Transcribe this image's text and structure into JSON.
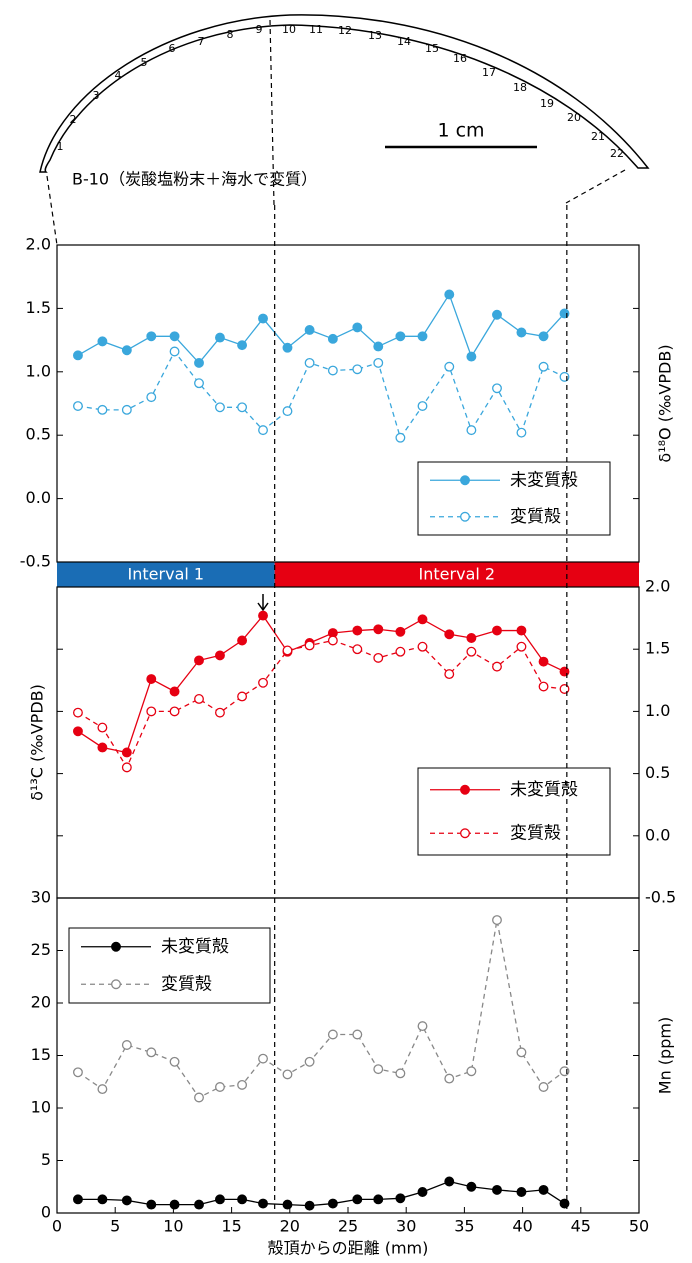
{
  "header": {
    "specimen": "B-10（炭酸塩粉末＋海水で変質）",
    "scale_bar": "1 cm",
    "shell_labels": [
      1,
      2,
      3,
      4,
      5,
      6,
      7,
      8,
      9,
      10,
      11,
      12,
      13,
      14,
      15,
      16,
      17,
      18,
      19,
      20,
      21,
      22
    ]
  },
  "intervals": [
    {
      "label": "Interval 1",
      "start": 0,
      "end": 18.7,
      "color": "#1a6db5"
    },
    {
      "label": "Interval 2",
      "start": 18.7,
      "end": 50,
      "color": "#e60012"
    }
  ],
  "vlines": [
    18.7,
    43.8
  ],
  "chart_data": [
    {
      "type": "line",
      "ylabel": "δ¹⁸O (‰VPDB)",
      "xlim": [
        0,
        50
      ],
      "ylim": [
        -0.5,
        2.0
      ],
      "yticks": [
        {
          "value": -0.5,
          "label": "-0.5"
        },
        {
          "value": 0,
          "label": "0.0"
        },
        {
          "value": 0.5,
          "label": "0.5"
        },
        {
          "value": 1,
          "label": "1.0"
        },
        {
          "value": 1.5,
          "label": "1.5"
        },
        {
          "value": 2,
          "label": "2.0"
        }
      ],
      "legend": "lower right",
      "x": [
        1.8,
        3.9,
        6.0,
        8.1,
        10.1,
        12.2,
        14.0,
        15.9,
        17.7,
        19.8,
        21.7,
        23.7,
        25.8,
        27.6,
        29.5,
        31.4,
        33.7,
        35.6,
        37.8,
        39.9,
        41.8,
        43.6
      ],
      "series": [
        {
          "name": "未変質殻",
          "color": "#3aa7dc",
          "linestyle": "solid",
          "marker": "filled",
          "values": [
            1.13,
            1.24,
            1.17,
            1.28,
            1.28,
            1.07,
            1.27,
            1.21,
            1.42,
            1.19,
            1.33,
            1.26,
            1.35,
            1.2,
            1.28,
            1.28,
            1.61,
            1.12,
            1.45,
            1.31,
            1.28,
            1.46
          ]
        },
        {
          "name": "変質殻",
          "color": "#3aa7dc",
          "linestyle": "dashed",
          "marker": "open",
          "values": [
            0.73,
            0.7,
            0.7,
            0.8,
            1.16,
            0.91,
            0.72,
            0.72,
            0.54,
            0.69,
            1.07,
            1.01,
            1.02,
            1.07,
            0.48,
            0.73,
            1.04,
            0.54,
            0.87,
            0.52,
            1.04,
            0.96
          ]
        }
      ]
    },
    {
      "type": "line",
      "ylabel": "δ¹³C (‰VPDB)",
      "xlim": [
        0,
        50
      ],
      "ylim": [
        -0.5,
        2.0
      ],
      "yticks": [
        {
          "value": -0.5,
          "label": "-0.5"
        },
        {
          "value": 0,
          "label": "0.0"
        },
        {
          "value": 0.5,
          "label": "0.5"
        },
        {
          "value": 1,
          "label": "1.0"
        },
        {
          "value": 1.5,
          "label": "1.5"
        },
        {
          "value": 2,
          "label": "2.0"
        }
      ],
      "legend": "lower right",
      "x": [
        1.8,
        3.9,
        6.0,
        8.1,
        10.1,
        12.2,
        14.0,
        15.9,
        17.7,
        19.8,
        21.7,
        23.7,
        25.8,
        27.6,
        29.5,
        31.4,
        33.7,
        35.6,
        37.8,
        39.9,
        41.8,
        43.6
      ],
      "series": [
        {
          "name": "未変質殻",
          "color": "#e60012",
          "linestyle": "solid",
          "marker": "filled",
          "values": [
            0.84,
            0.71,
            0.67,
            1.26,
            1.16,
            1.41,
            1.45,
            1.57,
            1.77,
            1.48,
            1.55,
            1.63,
            1.65,
            1.66,
            1.64,
            1.74,
            1.62,
            1.59,
            1.65,
            1.65,
            1.4,
            1.32
          ]
        },
        {
          "name": "変質殻",
          "color": "#e60012",
          "linestyle": "dashed",
          "marker": "open",
          "values": [
            0.99,
            0.87,
            0.55,
            1.0,
            1.0,
            1.1,
            0.99,
            1.12,
            1.23,
            1.49,
            1.53,
            1.57,
            1.5,
            1.43,
            1.48,
            1.52,
            1.3,
            1.48,
            1.36,
            1.52,
            1.2,
            1.18
          ]
        }
      ]
    },
    {
      "type": "line",
      "ylabel": "Mn (ppm)",
      "xlabel": "殻頂からの距離 (mm)",
      "xlim": [
        0,
        50
      ],
      "ylim": [
        0,
        30
      ],
      "xticks": [
        0,
        5,
        10,
        15,
        20,
        25,
        30,
        35,
        40,
        45,
        50
      ],
      "yticks": [
        0,
        5,
        10,
        15,
        20,
        25,
        30
      ],
      "legend": "upper left",
      "x": [
        1.8,
        3.9,
        6.0,
        8.1,
        10.1,
        12.2,
        14.0,
        15.9,
        17.7,
        19.8,
        21.7,
        23.7,
        25.8,
        27.6,
        29.5,
        31.4,
        33.7,
        35.6,
        37.8,
        39.9,
        41.8,
        43.6
      ],
      "series": [
        {
          "name": "未変質殻",
          "color": "#000000",
          "linestyle": "solid",
          "marker": "filled",
          "values": [
            1.3,
            1.3,
            1.2,
            0.8,
            0.8,
            0.8,
            1.3,
            1.3,
            0.9,
            0.8,
            0.7,
            0.9,
            1.3,
            1.3,
            1.4,
            2.0,
            3.0,
            2.5,
            2.2,
            2.0,
            2.2,
            0.9
          ]
        },
        {
          "name": "変質殻",
          "color": "#888888",
          "linestyle": "dashed",
          "marker": "open",
          "values": [
            13.4,
            11.8,
            16.0,
            15.3,
            14.4,
            11.0,
            12.0,
            12.2,
            14.7,
            13.2,
            14.4,
            17.0,
            17.0,
            13.7,
            13.3,
            17.8,
            12.8,
            13.5,
            27.9,
            15.3,
            12.0,
            13.5
          ]
        }
      ]
    }
  ]
}
